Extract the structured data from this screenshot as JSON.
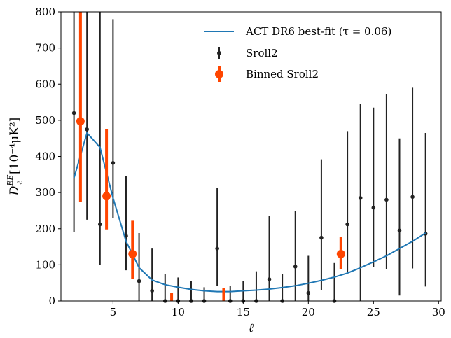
{
  "chart_data": {
    "type": "scatter",
    "xlabel": "ℓ",
    "ylabel_main": "D",
    "ylabel_sub": "ℓ",
    "ylabel_sup": "EE",
    "ylabel_units": "[10⁻⁴μK²]",
    "xlim": [
      1,
      30.2
    ],
    "ylim": [
      0,
      800
    ],
    "xticks": [
      5,
      10,
      15,
      20,
      25,
      30
    ],
    "yticks": [
      0,
      100,
      200,
      300,
      400,
      500,
      600,
      700,
      800
    ],
    "grid": false,
    "legend_position": "top-right",
    "colors": {
      "model": "#1f77b4",
      "sroll2": "#222222",
      "binned": "#ff4500"
    },
    "series": [
      {
        "name": "ACT DR6 best-fit (τ = 0.06)",
        "kind": "line",
        "x": [
          2,
          3,
          4,
          5,
          6,
          7,
          8,
          9,
          10,
          11,
          12,
          13,
          14,
          15,
          16,
          17,
          18,
          19,
          20,
          21,
          22,
          23,
          24,
          25,
          26,
          27,
          28,
          29
        ],
        "y": [
          340,
          465,
          425,
          285,
          165,
          92,
          58,
          45,
          38,
          32,
          28,
          26,
          26,
          28,
          30,
          33,
          37,
          42,
          49,
          57,
          66,
          77,
          92,
          108,
          125,
          145,
          165,
          188
        ]
      },
      {
        "name": "Sroll2",
        "kind": "errorbar",
        "x": [
          2,
          3,
          4,
          5,
          6,
          7,
          8,
          9,
          10,
          11,
          12,
          13,
          14,
          15,
          16,
          17,
          18,
          19,
          20,
          21,
          22,
          23,
          24,
          25,
          26,
          27,
          28,
          29
        ],
        "y": [
          520,
          475,
          212,
          382,
          180,
          55,
          28,
          0,
          0,
          0,
          0,
          145,
          0,
          0,
          0,
          60,
          0,
          95,
          22,
          175,
          0,
          212,
          285,
          258,
          280,
          195,
          288,
          186
        ],
        "ylo": [
          190,
          225,
          100,
          230,
          85,
          0,
          0,
          0,
          0,
          0,
          0,
          42,
          0,
          0,
          0,
          0,
          0,
          0,
          0,
          30,
          0,
          80,
          0,
          95,
          88,
          15,
          90,
          40
        ],
        "yhi": [
          800,
          800,
          800,
          780,
          345,
          188,
          145,
          75,
          65,
          55,
          38,
          312,
          42,
          55,
          82,
          235,
          75,
          248,
          125,
          392,
          105,
          470,
          545,
          535,
          572,
          450,
          590,
          465
        ]
      },
      {
        "name": "Binned Sroll2",
        "kind": "errorbar",
        "x": [
          2.5,
          4.5,
          6.5,
          9.5,
          13.5,
          22.5
        ],
        "y": [
          497,
          290,
          130,
          0,
          0,
          130
        ],
        "ylo": [
          275,
          198,
          62,
          0,
          0,
          88
        ],
        "yhi": [
          800,
          475,
          222,
          22,
          35,
          178
        ]
      }
    ]
  }
}
